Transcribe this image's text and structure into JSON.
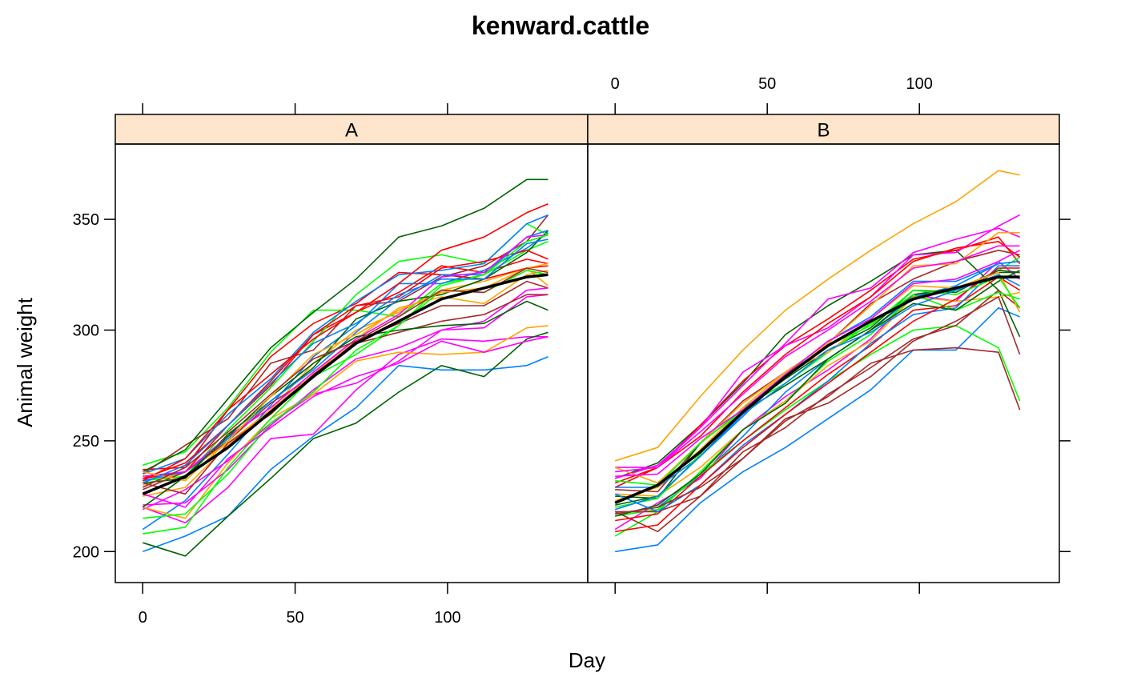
{
  "chart_data": {
    "type": "line",
    "title": "kenward.cattle",
    "xlabel": "Day",
    "ylabel": "Animal weight",
    "xlim": [
      -9,
      146
    ],
    "ylim": [
      186,
      384
    ],
    "x_ticks": [
      0,
      50,
      100
    ],
    "y_ticks": [
      200,
      250,
      300,
      350
    ],
    "days": [
      0,
      14,
      28,
      42,
      56,
      70,
      84,
      98,
      112,
      126,
      133
    ],
    "strip_color": "#ffe5cc",
    "palette": [
      "#0080ff",
      "#ff00ff",
      "#006400",
      "#ff0000",
      "#ffa500",
      "#00ff00",
      "#a52a2a"
    ],
    "mean_color": "#000000",
    "panels": [
      {
        "label": "A",
        "mean": [
          226,
          234,
          247,
          263,
          279,
          294,
          304,
          314,
          319,
          324,
          325
        ],
        "animals": [
          [
            200,
            207,
            216,
            237,
            252,
            265,
            284,
            282,
            282,
            284,
            288
          ],
          [
            220,
            213,
            229,
            251,
            253,
            273,
            289,
            296,
            295,
            297,
            297
          ],
          [
            204,
            198,
            216,
            233,
            251,
            258,
            272,
            284,
            279,
            296,
            299
          ],
          [
            233,
            236,
            257,
            277,
            298,
            308,
            317,
            329,
            326,
            332,
            330
          ],
          [
            230,
            236,
            249,
            264,
            285,
            300,
            308,
            318,
            322,
            328,
            320
          ],
          [
            239,
            245,
            265,
            290,
            309,
            309,
            306,
            321,
            325,
            336,
            340
          ],
          [
            235,
            248,
            260,
            285,
            291,
            311,
            313,
            324,
            329,
            340,
            352
          ],
          [
            210,
            223,
            244,
            266,
            288,
            302,
            321,
            321,
            327,
            337,
            344
          ],
          [
            219,
            228,
            241,
            258,
            271,
            276,
            286,
            300,
            301,
            315,
            316
          ],
          [
            231,
            233,
            253,
            268,
            283,
            305,
            313,
            316,
            323,
            335,
            345
          ],
          [
            237,
            238,
            264,
            288,
            303,
            312,
            326,
            325,
            323,
            328,
            329
          ],
          [
            220,
            215,
            240,
            260,
            271,
            286,
            290,
            289,
            290,
            301,
            302
          ],
          [
            232,
            234,
            255,
            274,
            295,
            316,
            331,
            334,
            330,
            348,
            343
          ],
          [
            228,
            236,
            250,
            267,
            279,
            295,
            303,
            311,
            311,
            322,
            319
          ],
          [
            235,
            242,
            262,
            278,
            299,
            313,
            325,
            327,
            330,
            348,
            352
          ],
          [
            221,
            222,
            237,
            257,
            273,
            287,
            292,
            300,
            304,
            318,
            319
          ],
          [
            236,
            246,
            269,
            292,
            308,
            323,
            342,
            347,
            355,
            368,
            368
          ],
          [
            233,
            240,
            257,
            275,
            298,
            311,
            315,
            328,
            331,
            336,
            332
          ],
          [
            225,
            229,
            248,
            264,
            280,
            296,
            310,
            315,
            312,
            325,
            327
          ],
          [
            208,
            211,
            238,
            260,
            279,
            289,
            302,
            318,
            317,
            327,
            325
          ],
          [
            231,
            226,
            249,
            262,
            280,
            294,
            299,
            304,
            307,
            316,
            316
          ],
          [
            232,
            236,
            251,
            268,
            282,
            299,
            314,
            325,
            325,
            342,
            345
          ],
          [
            234,
            236,
            252,
            265,
            281,
            296,
            307,
            324,
            326,
            342,
            343
          ],
          [
            220,
            234,
            252,
            270,
            285,
            297,
            300,
            302,
            303,
            313,
            309
          ],
          [
            232,
            242,
            264,
            280,
            296,
            308,
            321,
            336,
            342,
            353,
            357
          ],
          [
            236,
            232,
            250,
            270,
            289,
            298,
            309,
            317,
            319,
            328,
            330
          ],
          [
            215,
            217,
            235,
            258,
            272,
            291,
            302,
            320,
            325,
            340,
            343
          ],
          [
            229,
            238,
            254,
            271,
            287,
            295,
            306,
            318,
            317,
            328,
            326
          ],
          [
            231,
            239,
            257,
            276,
            294,
            303,
            316,
            323,
            323,
            339,
            341
          ],
          [
            226,
            220,
            242,
            256,
            270,
            279,
            285,
            295,
            290,
            295,
            297
          ]
        ]
      },
      {
        "label": "B",
        "mean": [
          222,
          230,
          245,
          263,
          279,
          293,
          304,
          314,
          319,
          324,
          324
        ],
        "animals": [
          [
            200,
            203,
            222,
            236,
            247,
            260,
            273,
            291,
            291,
            310,
            306
          ],
          [
            210,
            222,
            233,
            255,
            270,
            282,
            296,
            316,
            313,
            331,
            323
          ],
          [
            233,
            240,
            257,
            276,
            298,
            311,
            322,
            334,
            336,
            318,
            297
          ],
          [
            229,
            238,
            257,
            277,
            293,
            305,
            318,
            332,
            336,
            342,
            330
          ],
          [
            241,
            247,
            270,
            291,
            309,
            323,
            336,
            348,
            358,
            372,
            370
          ],
          [
            207,
            218,
            236,
            255,
            268,
            286,
            298,
            315,
            318,
            327,
            333
          ],
          [
            228,
            227,
            249,
            268,
            281,
            294,
            312,
            323,
            331,
            336,
            334
          ],
          [
            217,
            220,
            234,
            252,
            272,
            287,
            300,
            315,
            320,
            330,
            331
          ],
          [
            238,
            238,
            256,
            281,
            293,
            301,
            315,
            334,
            335,
            347,
            352
          ],
          [
            225,
            224,
            249,
            264,
            278,
            291,
            301,
            318,
            317,
            327,
            326
          ],
          [
            231,
            238,
            252,
            272,
            289,
            303,
            315,
            331,
            337,
            340,
            333
          ],
          [
            226,
            225,
            238,
            255,
            268,
            284,
            295,
            315,
            313,
            315,
            317
          ],
          [
            216,
            219,
            235,
            250,
            264,
            277,
            289,
            300,
            302,
            292,
            268
          ],
          [
            218,
            209,
            225,
            245,
            256,
            271,
            283,
            296,
            302,
            318,
            310
          ],
          [
            229,
            229,
            243,
            261,
            280,
            295,
            306,
            322,
            322,
            330,
            331
          ],
          [
            233,
            239,
            256,
            275,
            294,
            314,
            319,
            335,
            341,
            346,
            342
          ],
          [
            216,
            221,
            235,
            255,
            267,
            287,
            300,
            316,
            319,
            326,
            326
          ],
          [
            214,
            217,
            234,
            250,
            265,
            280,
            293,
            309,
            311,
            324,
            318
          ],
          [
            238,
            231,
            249,
            267,
            281,
            294,
            311,
            329,
            330,
            344,
            344
          ],
          [
            220,
            224,
            244,
            265,
            276,
            290,
            303,
            316,
            309,
            317,
            314
          ],
          [
            218,
            218,
            225,
            242,
            259,
            270,
            285,
            291,
            292,
            290,
            264
          ],
          [
            226,
            218,
            230,
            248,
            262,
            277,
            294,
            307,
            310,
            329,
            329
          ],
          [
            236,
            238,
            254,
            271,
            288,
            300,
            313,
            328,
            331,
            338,
            338
          ],
          [
            221,
            225,
            243,
            263,
            275,
            287,
            300,
            312,
            309,
            322,
            327
          ],
          [
            209,
            212,
            230,
            247,
            262,
            276,
            290,
            304,
            314,
            328,
            328
          ],
          [
            223,
            229,
            246,
            265,
            281,
            290,
            305,
            320,
            319,
            326,
            308
          ],
          [
            232,
            230,
            249,
            264,
            280,
            293,
            302,
            318,
            316,
            324,
            310
          ],
          [
            217,
            220,
            229,
            242,
            260,
            267,
            279,
            295,
            304,
            315,
            289
          ],
          [
            219,
            225,
            243,
            262,
            276,
            291,
            299,
            311,
            318,
            325,
            320
          ],
          [
            234,
            235,
            251,
            264,
            280,
            295,
            305,
            321,
            323,
            331,
            336
          ]
        ]
      }
    ]
  }
}
